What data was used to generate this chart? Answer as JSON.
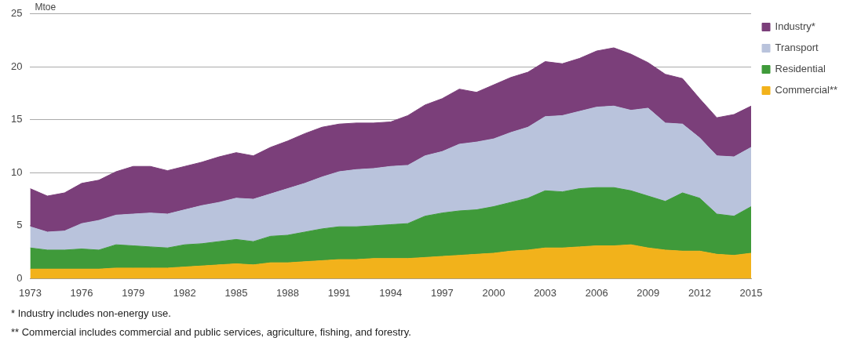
{
  "chart_data": {
    "type": "area",
    "stacked": true,
    "ylabel": "Mtoe",
    "x": [
      1973,
      1974,
      1975,
      1976,
      1977,
      1978,
      1979,
      1980,
      1981,
      1982,
      1983,
      1984,
      1985,
      1986,
      1987,
      1988,
      1989,
      1990,
      1991,
      1992,
      1993,
      1994,
      1995,
      1996,
      1997,
      1998,
      1999,
      2000,
      2001,
      2002,
      2003,
      2004,
      2005,
      2006,
      2007,
      2008,
      2009,
      2010,
      2011,
      2012,
      2013,
      2014,
      2015
    ],
    "series": [
      {
        "name": "Commercial**",
        "color": "#f2b21b",
        "values": [
          0.9,
          0.9,
          0.9,
          0.9,
          0.9,
          1.0,
          1.0,
          1.0,
          1.0,
          1.1,
          1.2,
          1.3,
          1.4,
          1.3,
          1.5,
          1.5,
          1.6,
          1.7,
          1.8,
          1.8,
          1.9,
          1.9,
          1.9,
          2.0,
          2.1,
          2.2,
          2.3,
          2.4,
          2.6,
          2.7,
          2.9,
          2.9,
          3.0,
          3.1,
          3.1,
          3.2,
          2.9,
          2.7,
          2.6,
          2.6,
          2.3,
          2.2,
          2.4
        ]
      },
      {
        "name": "Residential",
        "color": "#3f9a3a",
        "values": [
          2.0,
          1.8,
          1.8,
          1.9,
          1.8,
          2.2,
          2.1,
          2.0,
          1.9,
          2.1,
          2.1,
          2.2,
          2.3,
          2.2,
          2.5,
          2.6,
          2.8,
          3.0,
          3.1,
          3.1,
          3.1,
          3.2,
          3.3,
          3.9,
          4.1,
          4.2,
          4.2,
          4.4,
          4.6,
          4.9,
          5.4,
          5.3,
          5.5,
          5.5,
          5.5,
          5.1,
          4.9,
          4.6,
          5.5,
          5.0,
          3.8,
          3.7,
          4.4
        ]
      },
      {
        "name": "Transport",
        "color": "#b9c3dc",
        "values": [
          2.0,
          1.7,
          1.8,
          2.4,
          2.8,
          2.8,
          3.0,
          3.2,
          3.2,
          3.3,
          3.6,
          3.7,
          3.9,
          4.0,
          4.0,
          4.4,
          4.6,
          4.9,
          5.2,
          5.4,
          5.4,
          5.5,
          5.5,
          5.7,
          5.8,
          6.3,
          6.4,
          6.4,
          6.6,
          6.7,
          7.0,
          7.2,
          7.3,
          7.6,
          7.7,
          7.6,
          8.3,
          7.4,
          6.5,
          5.7,
          5.5,
          5.6,
          5.6
        ]
      },
      {
        "name": "Industry*",
        "color": "#7b3f7a",
        "values": [
          3.6,
          3.4,
          3.6,
          3.8,
          3.8,
          4.1,
          4.5,
          4.4,
          4.1,
          4.1,
          4.1,
          4.3,
          4.3,
          4.1,
          4.4,
          4.5,
          4.7,
          4.7,
          4.5,
          4.4,
          4.3,
          4.2,
          4.7,
          4.8,
          5.0,
          5.2,
          4.7,
          5.1,
          5.2,
          5.2,
          5.2,
          4.9,
          5.0,
          5.3,
          5.5,
          5.3,
          4.3,
          4.6,
          4.3,
          3.7,
          3.6,
          4.0,
          3.9
        ]
      }
    ],
    "xlim": [
      1973,
      2015
    ],
    "xticks": [
      1973,
      1976,
      1979,
      1982,
      1985,
      1988,
      1991,
      1994,
      1997,
      2000,
      2003,
      2006,
      2009,
      2012,
      2015
    ],
    "ylim": [
      0,
      25
    ],
    "yticks": [
      0,
      5,
      10,
      15,
      20,
      25
    ],
    "grid": "y",
    "legend": "right",
    "annotations": [
      "* Industry includes non-energy use.",
      "** Commercial includes commercial and public services, agriculture, fishing, and forestry."
    ]
  }
}
